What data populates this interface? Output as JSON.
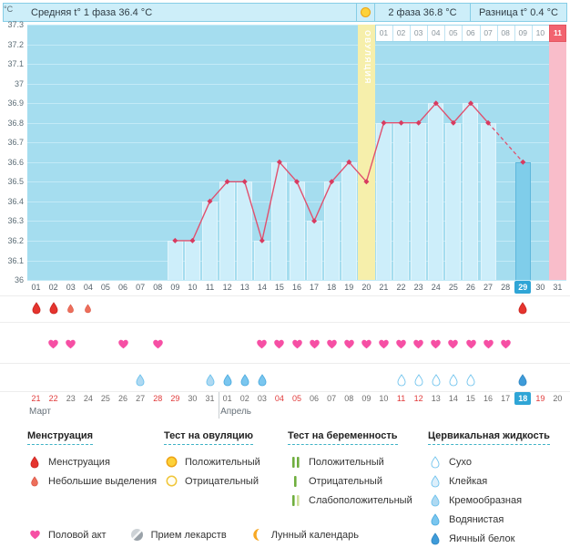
{
  "header": {
    "phase1": "Средняя t° 1 фаза 36.4 °C",
    "phase2": "2 фаза 36.8 °C",
    "diff": "Разница t° 0.4 °C"
  },
  "chart_data": {
    "type": "line",
    "ylabel": "°C",
    "ylim": [
      36,
      37.3
    ],
    "yticks": [
      "37.3",
      "37.2",
      "37.1",
      "37",
      "36.9",
      "36.8",
      "36.7",
      "36.6",
      "36.5",
      "36.4",
      "36.3",
      "36.2",
      "36.1",
      "36"
    ],
    "days": [
      "01",
      "02",
      "03",
      "04",
      "05",
      "06",
      "07",
      "08",
      "09",
      "10",
      "11",
      "12",
      "13",
      "14",
      "15",
      "16",
      "17",
      "18",
      "19",
      "20",
      "21",
      "22",
      "23",
      "24",
      "25",
      "26",
      "27",
      "28",
      "29",
      "30",
      "31"
    ],
    "temps": [
      null,
      null,
      null,
      null,
      null,
      null,
      null,
      null,
      36.2,
      36.2,
      36.4,
      36.5,
      36.5,
      36.2,
      36.6,
      36.5,
      36.3,
      36.5,
      36.6,
      36.5,
      36.8,
      36.8,
      36.8,
      36.9,
      36.8,
      36.9,
      36.8,
      null,
      36.6,
      null,
      null
    ],
    "phase1_avg": 36.4,
    "phase2_avg": 36.8,
    "temp_difference": 0.4,
    "ovulation_day": 20,
    "ovulation_label": "ОВУЛЯЦИЯ",
    "today_day": 29,
    "period_expected_day": 31,
    "dpo_row": {
      "start_day": 21,
      "labels": [
        "01",
        "02",
        "03",
        "04",
        "05",
        "06",
        "07",
        "08",
        "09",
        "10",
        "11"
      ],
      "highlight_index": 10
    }
  },
  "events": {
    "menstruation": [
      {
        "day": 1,
        "type": "full"
      },
      {
        "day": 2,
        "type": "full"
      },
      {
        "day": 3,
        "type": "light"
      },
      {
        "day": 4,
        "type": "light"
      },
      {
        "day": 29,
        "type": "full"
      }
    ],
    "intercourse_days": [
      2,
      3,
      6,
      8,
      14,
      15,
      16,
      17,
      18,
      19,
      20,
      21,
      22,
      23,
      24,
      25,
      26,
      27,
      28
    ],
    "fluids": [
      {
        "day": 7,
        "type": "creamy"
      },
      {
        "day": 11,
        "type": "creamy"
      },
      {
        "day": 12,
        "type": "watery"
      },
      {
        "day": 13,
        "type": "watery"
      },
      {
        "day": 14,
        "type": "watery"
      },
      {
        "day": 22,
        "type": "dry"
      },
      {
        "day": 23,
        "type": "dry"
      },
      {
        "day": 24,
        "type": "dry"
      },
      {
        "day": 25,
        "type": "dry"
      },
      {
        "day": 26,
        "type": "dry"
      },
      {
        "day": 29,
        "type": "eggwhite"
      }
    ]
  },
  "calendar": {
    "months": [
      {
        "label": "Март",
        "dates": [
          {
            "d": "21",
            "we": true
          },
          {
            "d": "22",
            "we": true
          },
          {
            "d": "23"
          },
          {
            "d": "24"
          },
          {
            "d": "25"
          },
          {
            "d": "26"
          },
          {
            "d": "27"
          },
          {
            "d": "28",
            "we": true
          },
          {
            "d": "29",
            "we": true
          },
          {
            "d": "30"
          },
          {
            "d": "31"
          }
        ]
      },
      {
        "label": "Апрель",
        "dates": [
          {
            "d": "01"
          },
          {
            "d": "02"
          },
          {
            "d": "03"
          },
          {
            "d": "04",
            "we": true
          },
          {
            "d": "05",
            "we": true
          },
          {
            "d": "06"
          },
          {
            "d": "07"
          },
          {
            "d": "08"
          },
          {
            "d": "09"
          },
          {
            "d": "10"
          },
          {
            "d": "11",
            "we": true
          },
          {
            "d": "12",
            "we": true
          },
          {
            "d": "13"
          },
          {
            "d": "14"
          },
          {
            "d": "15"
          },
          {
            "d": "16"
          },
          {
            "d": "17"
          },
          {
            "d": "18",
            "today": true
          },
          {
            "d": "19",
            "we": true
          },
          {
            "d": "20"
          }
        ]
      }
    ]
  },
  "legend": {
    "columns": [
      {
        "title": "Менструация",
        "items": [
          {
            "icon": "menses-full",
            "label": "Менструация"
          },
          {
            "icon": "menses-light",
            "label": "Небольшие выделения"
          }
        ]
      },
      {
        "title": "Тест на овуляцию",
        "items": [
          {
            "icon": "ovu-pos",
            "label": "Положительный"
          },
          {
            "icon": "ovu-neg",
            "label": "Отрицательный"
          }
        ]
      },
      {
        "title": "Тест на беременность",
        "items": [
          {
            "icon": "preg-pos",
            "label": "Положительный"
          },
          {
            "icon": "preg-neg",
            "label": "Отрицательный"
          },
          {
            "icon": "preg-weak",
            "label": "Слабоположительный"
          }
        ]
      },
      {
        "title": "Цервикальная жидкость",
        "items": [
          {
            "icon": "fluid-dry",
            "label": "Сухо"
          },
          {
            "icon": "fluid-sticky",
            "label": "Клейкая"
          },
          {
            "icon": "fluid-creamy",
            "label": "Кремообразная"
          },
          {
            "icon": "fluid-watery",
            "label": "Водянистая"
          },
          {
            "icon": "fluid-eggwhite",
            "label": "Яичный белок"
          }
        ]
      }
    ],
    "bottom": [
      {
        "icon": "intercourse",
        "label": "Половой акт"
      },
      {
        "icon": "medication",
        "label": "Прием лекарств"
      },
      {
        "icon": "lunar",
        "label": "Лунный календарь"
      }
    ]
  },
  "colors": {
    "chart_bg": "#a5ddef",
    "grid": "#c3eaf7",
    "bar": "#cdeefa",
    "bar_border": "#e2f5fc",
    "bar_today": "#7fcdea",
    "bar_today_border": "#5fb8dc",
    "line": "#e0506e",
    "point": "#d83b60",
    "ovulation_col": "#f6efab",
    "period_col": "#f9bdca",
    "dpo_highlight": "#f2636f",
    "today_badge": "#2fa5d6",
    "weekend": "#e03a3a",
    "date_text": "#6e6e6e",
    "heart": "#f64fa4",
    "menses": "#e5342e",
    "menses_light": "#ed6f5b",
    "fluid_stroke": "#66bfec",
    "fluid_dry_fill": "#ffffff",
    "fluid_sticky_fill": "#ddeffb",
    "fluid_creamy_fill": "#aed9f2",
    "fluid_watery_fill": "#7ac6ef",
    "fluid_eggwhite_fill": "#3e9bd9",
    "topbar_bg": "#cdeef9",
    "topbar_border": "#86cde6"
  }
}
